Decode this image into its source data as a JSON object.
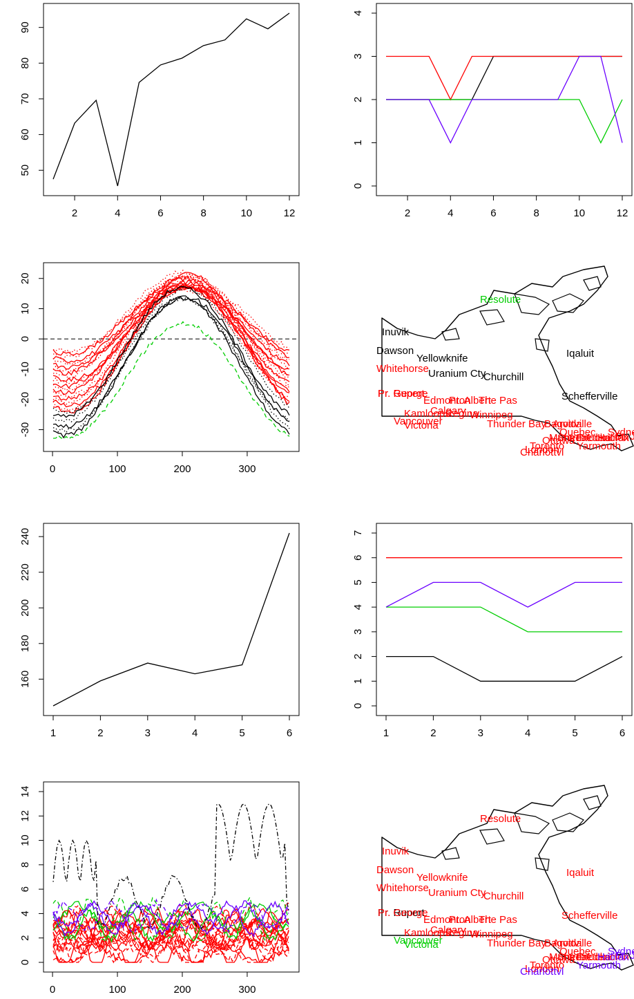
{
  "colors": {
    "black": "#000000",
    "red": "#ff0000",
    "green": "#00cd00",
    "blue": "#6a00ff"
  },
  "chart_data": [
    {
      "type": "line",
      "x": [
        1,
        2,
        3,
        4,
        5,
        6,
        7,
        8,
        9,
        10,
        11,
        12
      ],
      "series": [
        {
          "values": [
            47.5,
            63.2,
            69.6,
            45.6,
            74.6,
            79.5,
            81.4,
            84.9,
            86.5,
            92.4,
            89.6,
            94.0
          ],
          "color": "#000000",
          "dash": "solid"
        }
      ],
      "xlim": [
        1,
        12
      ],
      "ylim": [
        45.6,
        94.0
      ],
      "xticks": [
        2,
        4,
        6,
        8,
        10,
        12
      ],
      "yticks": [
        50,
        60,
        70,
        80,
        90
      ]
    },
    {
      "type": "line",
      "x": [
        1,
        2,
        3,
        4,
        5,
        6,
        7,
        8,
        9,
        10,
        11,
        12
      ],
      "series": [
        {
          "values": [
            2,
            2,
            2,
            2,
            2,
            3,
            3,
            3,
            3,
            3,
            3,
            3
          ],
          "color": "#000000",
          "dash": "solid"
        },
        {
          "values": [
            3,
            3,
            3,
            2,
            3,
            3,
            3,
            3,
            3,
            3,
            3,
            3
          ],
          "color": "#ff0000",
          "dash": "solid"
        },
        {
          "values": [
            2,
            2,
            2,
            2,
            2,
            2,
            2,
            2,
            2,
            2,
            1,
            2
          ],
          "color": "#00cd00",
          "dash": "solid"
        },
        {
          "values": [
            2,
            2,
            2,
            1,
            2,
            2,
            2,
            2,
            2,
            3,
            3,
            1
          ],
          "color": "#6a00ff",
          "dash": "solid"
        }
      ],
      "xlim": [
        1,
        12
      ],
      "ylim": [
        0,
        4
      ],
      "xticks": [
        2,
        4,
        6,
        8,
        10,
        12
      ],
      "yticks": [
        0,
        1,
        2,
        3,
        4
      ]
    },
    {
      "type": "line",
      "x_range": [
        1,
        365
      ],
      "xlim": [
        1,
        365
      ],
      "ylim": [
        -34,
        22
      ],
      "xticks": [
        0,
        100,
        200,
        300
      ],
      "yticks": [
        -30,
        -20,
        -10,
        0,
        10,
        20
      ],
      "reference_line": {
        "y": 0,
        "dash": "dashed",
        "color": "#000000"
      },
      "series": [
        {
          "color": "#ff0000",
          "count": 20,
          "min_range": [
            -24,
            -4
          ],
          "max_range": [
            14,
            22
          ],
          "peak_day": 205,
          "width": 100
        },
        {
          "color": "#000000",
          "count": 6,
          "min_range": [
            -32,
            -24
          ],
          "max_range": [
            11,
            17
          ],
          "peak_day": 200,
          "width": 75
        },
        {
          "color": "#00cd00",
          "count": 1,
          "min_range": [
            -33,
            -33
          ],
          "max_range": [
            5,
            5
          ],
          "peak_day": 205,
          "width": 60
        }
      ]
    },
    {
      "type": "scatter",
      "map": "canada",
      "labels": [
        {
          "text": "Resolute",
          "color": "#00cd00"
        },
        {
          "text": "Inuvik",
          "color": "#000000"
        },
        {
          "text": "Dawson",
          "color": "#000000"
        },
        {
          "text": "Yellowknife",
          "color": "#000000"
        },
        {
          "text": "Iqaluit",
          "color": "#000000"
        },
        {
          "text": "Whitehorse",
          "color": "#ff0000"
        },
        {
          "text": "Uranium Cty",
          "color": "#000000"
        },
        {
          "text": "Churchill",
          "color": "#000000"
        },
        {
          "text": "Schefferville",
          "color": "#000000"
        },
        {
          "text": "Pr. George",
          "color": "#ff0000"
        },
        {
          "text": "Pr. Rupert",
          "color": "#ff0000"
        },
        {
          "text": "Edmonton",
          "color": "#ff0000"
        },
        {
          "text": "Pr. Albert",
          "color": "#ff0000"
        },
        {
          "text": "The Pas",
          "color": "#ff0000"
        },
        {
          "text": "Calgary",
          "color": "#ff0000"
        },
        {
          "text": "Kamloops",
          "color": "#ff0000"
        },
        {
          "text": "Regina",
          "color": "#ff0000"
        },
        {
          "text": "Winnipeg",
          "color": "#ff0000"
        },
        {
          "text": "Vancouver",
          "color": "#ff0000"
        },
        {
          "text": "Victoria",
          "color": "#ff0000"
        },
        {
          "text": "Thunder Bay",
          "color": "#ff0000"
        },
        {
          "text": "Bagottville",
          "color": "#ff0000"
        },
        {
          "text": "Arvida",
          "color": "#ff0000"
        },
        {
          "text": "Quebec",
          "color": "#ff0000"
        },
        {
          "text": "Sydney",
          "color": "#ff0000"
        },
        {
          "text": "St. Johns",
          "color": "#ff0000"
        },
        {
          "text": "Montreal",
          "color": "#ff0000"
        },
        {
          "text": "Sherbrooke",
          "color": "#ff0000"
        },
        {
          "text": "Fredericton",
          "color": "#ff0000"
        },
        {
          "text": "Halifax",
          "color": "#ff0000"
        },
        {
          "text": "Toronto",
          "color": "#ff0000"
        },
        {
          "text": "Ottawa",
          "color": "#ff0000"
        },
        {
          "text": "London",
          "color": "#ff0000"
        },
        {
          "text": "Yarmouth",
          "color": "#ff0000"
        },
        {
          "text": "Charlottvl",
          "color": "#ff0000"
        }
      ]
    },
    {
      "type": "line",
      "x": [
        1,
        2,
        3,
        4,
        5,
        6
      ],
      "series": [
        {
          "values": [
            145,
            159,
            169,
            163,
            168,
            242
          ],
          "color": "#000000",
          "dash": "solid"
        }
      ],
      "xlim": [
        1,
        6
      ],
      "ylim": [
        145,
        242
      ],
      "xticks": [
        1,
        2,
        3,
        4,
        5,
        6
      ],
      "yticks": [
        160,
        180,
        200,
        220,
        240
      ]
    },
    {
      "type": "line",
      "x": [
        1,
        2,
        3,
        4,
        5,
        6
      ],
      "series": [
        {
          "values": [
            2,
            2,
            1,
            1,
            1,
            2
          ],
          "color": "#000000",
          "dash": "solid"
        },
        {
          "values": [
            6,
            6,
            6,
            6,
            6,
            6
          ],
          "color": "#ff0000",
          "dash": "solid"
        },
        {
          "values": [
            4,
            4,
            4,
            3,
            3,
            3
          ],
          "color": "#00cd00",
          "dash": "solid"
        },
        {
          "values": [
            4,
            5,
            5,
            4,
            5,
            5
          ],
          "color": "#6a00ff",
          "dash": "solid"
        }
      ],
      "xlim": [
        1,
        6
      ],
      "ylim": [
        0,
        7
      ],
      "xticks": [
        1,
        2,
        3,
        4,
        5,
        6
      ],
      "yticks": [
        0,
        1,
        2,
        3,
        4,
        5,
        6,
        7
      ]
    },
    {
      "type": "line",
      "x_range": [
        1,
        365
      ],
      "xlim": [
        1,
        365
      ],
      "ylim": [
        0,
        14
      ],
      "xticks": [
        0,
        100,
        200,
        300
      ],
      "yticks": [
        0,
        2,
        4,
        6,
        8,
        10,
        12,
        14
      ],
      "series": [
        {
          "color": "#ff0000",
          "count": 18,
          "level_range": [
            0.4,
            3.2
          ],
          "amp_range": [
            0.2,
            1.6
          ]
        },
        {
          "color": "#00cd00",
          "count": 3,
          "level_range": [
            2.0,
            4.5
          ],
          "amp_range": [
            0.8,
            1.8
          ]
        },
        {
          "color": "#6a00ff",
          "count": 3,
          "level_range": [
            3.0,
            4.2
          ],
          "amp_range": [
            0.6,
            1.2
          ]
        },
        {
          "color": "#000000",
          "count": 1,
          "level_range": [
            5.0,
            5.0
          ],
          "amp_range": [
            2.0,
            2.0
          ],
          "dash": "dotdash",
          "spike": 14
        }
      ]
    },
    {
      "type": "scatter",
      "map": "canada",
      "labels": [
        {
          "text": "Resolute",
          "color": "#ff0000"
        },
        {
          "text": "Inuvik",
          "color": "#ff0000"
        },
        {
          "text": "Dawson",
          "color": "#ff0000"
        },
        {
          "text": "Yellowknife",
          "color": "#ff0000"
        },
        {
          "text": "Iqaluit",
          "color": "#ff0000"
        },
        {
          "text": "Whitehorse",
          "color": "#ff0000"
        },
        {
          "text": "Uranium Cty",
          "color": "#ff0000"
        },
        {
          "text": "Churchill",
          "color": "#ff0000"
        },
        {
          "text": "Schefferville",
          "color": "#ff0000"
        },
        {
          "text": "Pr. Rupert",
          "color": "#000000"
        },
        {
          "text": "Pr. George",
          "color": "#ff0000"
        },
        {
          "text": "Edmonton",
          "color": "#ff0000"
        },
        {
          "text": "Pr. Albert",
          "color": "#ff0000"
        },
        {
          "text": "The Pas",
          "color": "#ff0000"
        },
        {
          "text": "Calgary",
          "color": "#ff0000"
        },
        {
          "text": "Kamloops",
          "color": "#ff0000"
        },
        {
          "text": "Regina",
          "color": "#ff0000"
        },
        {
          "text": "Winnipeg",
          "color": "#ff0000"
        },
        {
          "text": "Vancouver",
          "color": "#00cd00"
        },
        {
          "text": "Victoria",
          "color": "#00cd00"
        },
        {
          "text": "Thunder Bay",
          "color": "#ff0000"
        },
        {
          "text": "Bagottville",
          "color": "#ff0000"
        },
        {
          "text": "Arvida",
          "color": "#ff0000"
        },
        {
          "text": "Quebec",
          "color": "#ff0000"
        },
        {
          "text": "Sydney",
          "color": "#6a00ff"
        },
        {
          "text": "St. Johns",
          "color": "#6a00ff"
        },
        {
          "text": "Montreal",
          "color": "#ff0000"
        },
        {
          "text": "Sherbrooke",
          "color": "#ff0000"
        },
        {
          "text": "Fredericton",
          "color": "#ff0000"
        },
        {
          "text": "Halifax",
          "color": "#6a00ff"
        },
        {
          "text": "Toronto",
          "color": "#ff0000"
        },
        {
          "text": "Ottawa",
          "color": "#ff0000"
        },
        {
          "text": "London",
          "color": "#ff0000"
        },
        {
          "text": "Yarmouth",
          "color": "#6a00ff"
        },
        {
          "text": "Charlottvl",
          "color": "#6a00ff"
        }
      ]
    }
  ]
}
